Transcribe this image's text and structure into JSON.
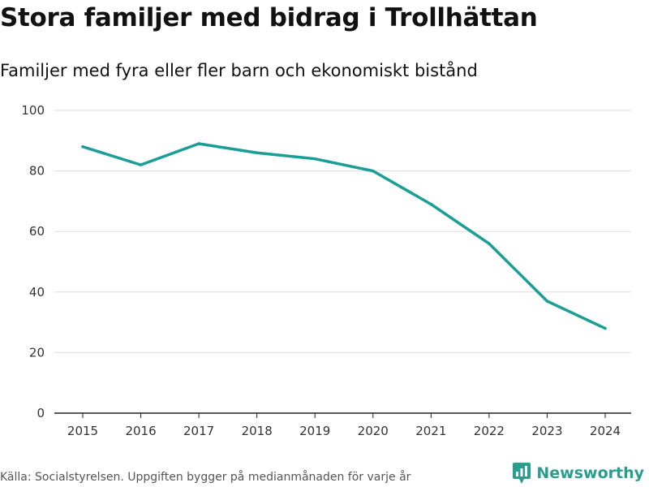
{
  "colors": {
    "line": "#1a9e96",
    "grid": "#dddddd",
    "axis": "#222222",
    "brand": "#2a9d8f"
  },
  "chart_data": {
    "type": "line",
    "title": "Stora familjer med bidrag i Trollhättan",
    "subtitle": "Familjer med fyra eller fler barn och ekonomiskt bistånd",
    "xlabel": "",
    "ylabel": "",
    "ylim": [
      0,
      100
    ],
    "grid": true,
    "yticks": [
      "0",
      "20",
      "40",
      "60",
      "80",
      "100"
    ],
    "ytick_values": [
      0,
      20,
      40,
      60,
      80,
      100
    ],
    "categories": [
      "2015",
      "2016",
      "2017",
      "2018",
      "2019",
      "2020",
      "2021",
      "2022",
      "2023",
      "2024"
    ],
    "series": [
      {
        "name": "Familjer med fyra eller fler barn och ekonomiskt bistånd",
        "values": [
          88,
          82,
          89,
          86,
          84,
          80,
          69,
          56,
          37,
          28
        ]
      }
    ]
  },
  "footer": {
    "source": "Källa: Socialstyrelsen. Uppgiften bygger på medianmånaden för varje år",
    "brand_name": "Newsworthy",
    "brand_icon": "newsworthy-logo-icon"
  }
}
